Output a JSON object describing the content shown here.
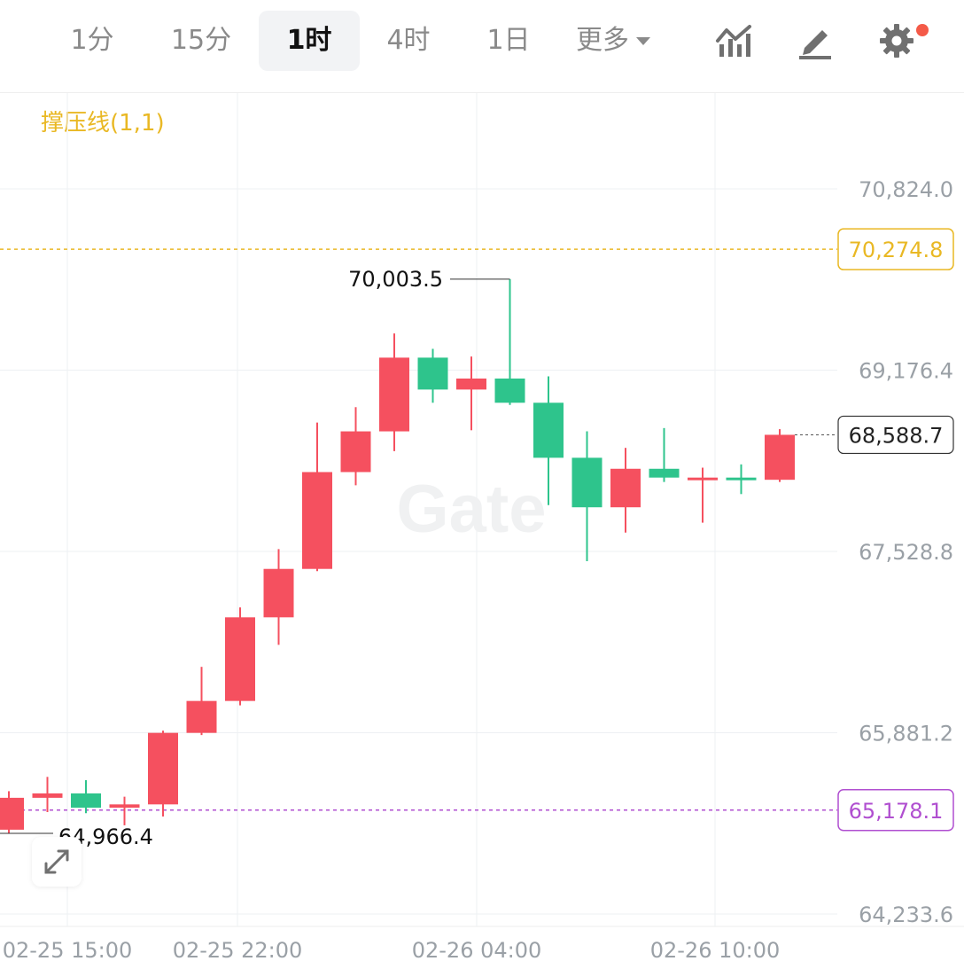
{
  "toolbar": {
    "tabs": [
      {
        "label": "1分"
      },
      {
        "label": "15分"
      },
      {
        "label": "1时",
        "active": true
      },
      {
        "label": "4时"
      },
      {
        "label": "1日"
      }
    ],
    "more_label": "更多",
    "icons": [
      "chart-type-icon",
      "draw-icon",
      "settings-icon"
    ]
  },
  "indicator_label": "撑压线(1,1)",
  "colors": {
    "up": "#f5505f",
    "down": "#2ec48c",
    "resistance": "#e9b824",
    "support": "#b04fd0",
    "grid": "#eef0f3",
    "axis_text": "#9aa0a6"
  },
  "chart_data": {
    "type": "candlestick",
    "watermark": "Gate",
    "y_ticks": [
      "70,824.0",
      "69,176.4",
      "67,528.8",
      "65,881.2",
      "64,233.6"
    ],
    "y_tick_values": [
      70824.0,
      69176.4,
      67528.8,
      65881.2,
      64233.6
    ],
    "x_ticks": [
      "02-25 15:00",
      "02-25 22:00",
      "02-26 04:00",
      "02-26 10:00"
    ],
    "resistance": {
      "value": 70274.8,
      "label": "70,274.8"
    },
    "support": {
      "value": 65178.1,
      "label": "65,178.1"
    },
    "last_price": {
      "value": 68588.7,
      "label": "68,588.7"
    },
    "high_marker": {
      "value": 70003.5,
      "label": "70,003.5"
    },
    "low_marker": {
      "value": 64966.4,
      "label": "64,966.4"
    },
    "candles": [
      {
        "o": 65000,
        "h": 65350,
        "l": 64966,
        "c": 65290
      },
      {
        "o": 65290,
        "h": 65480,
        "l": 65160,
        "c": 65330
      },
      {
        "o": 65330,
        "h": 65450,
        "l": 65150,
        "c": 65200
      },
      {
        "o": 65200,
        "h": 65300,
        "l": 65040,
        "c": 65230
      },
      {
        "o": 65230,
        "h": 65900,
        "l": 65120,
        "c": 65880
      },
      {
        "o": 65880,
        "h": 66480,
        "l": 65860,
        "c": 66170
      },
      {
        "o": 66170,
        "h": 67020,
        "l": 66130,
        "c": 66930
      },
      {
        "o": 66930,
        "h": 67550,
        "l": 66680,
        "c": 67370
      },
      {
        "o": 67370,
        "h": 68700,
        "l": 67350,
        "c": 68250
      },
      {
        "o": 68250,
        "h": 68840,
        "l": 68130,
        "c": 68620
      },
      {
        "o": 68620,
        "h": 69510,
        "l": 68440,
        "c": 69290
      },
      {
        "o": 69290,
        "h": 69370,
        "l": 68880,
        "c": 69000
      },
      {
        "o": 69000,
        "h": 69300,
        "l": 68630,
        "c": 69100
      },
      {
        "o": 69100,
        "h": 70003.5,
        "l": 68860,
        "c": 68880
      },
      {
        "o": 68880,
        "h": 69120,
        "l": 67950,
        "c": 68380
      },
      {
        "o": 68380,
        "h": 68620,
        "l": 67440,
        "c": 67930
      },
      {
        "o": 67930,
        "h": 68470,
        "l": 67700,
        "c": 68280
      },
      {
        "o": 68280,
        "h": 68650,
        "l": 68160,
        "c": 68200
      },
      {
        "o": 68200,
        "h": 68290,
        "l": 67790,
        "c": 68200
      },
      {
        "o": 68200,
        "h": 68320,
        "l": 68050,
        "c": 68180
      },
      {
        "o": 68180,
        "h": 68640,
        "l": 68160,
        "c": 68588.7
      }
    ]
  }
}
